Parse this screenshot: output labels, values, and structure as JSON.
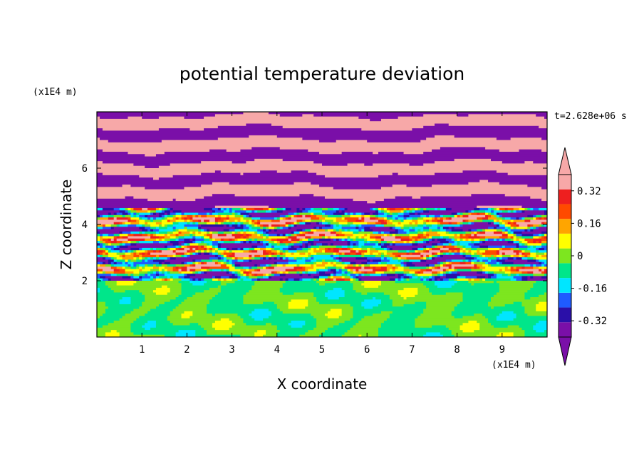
{
  "chart_data": {
    "type": "heatmap",
    "title": "potential temperature deviation",
    "xlabel": "X coordinate",
    "ylabel": "Z coordinate",
    "x_unit": "(x1E4 m)",
    "y_unit": "(x1E4 m)",
    "time_label": "t=2.628e+06 s",
    "xlim": [
      0,
      10
    ],
    "ylim": [
      0,
      8
    ],
    "x_ticks": [
      "1",
      "2",
      "3",
      "4",
      "5",
      "6",
      "7",
      "8",
      "9"
    ],
    "y_ticks": [
      "2",
      "4",
      "6"
    ],
    "colorbar": {
      "tick_labels": [
        "0.32",
        "0.16",
        "0",
        "-0.16",
        "-0.32"
      ],
      "tick_values": [
        0.32,
        0.16,
        0,
        -0.16,
        -0.32
      ],
      "levels": [
        -0.4,
        -0.32,
        -0.24,
        -0.16,
        -0.08,
        0,
        0.08,
        0.16,
        0.24,
        0.32,
        0.4
      ],
      "colors": [
        "#7a0fa8",
        "#2a0fa8",
        "#1f5bff",
        "#00e6ff",
        "#00e68a",
        "#7de61f",
        "#ffff00",
        "#ffa500",
        "#ff4a00",
        "#ee1f1f",
        "#f7a8a8"
      ],
      "under_color": "#7a0fa8",
      "over_color": "#f7a8a8"
    },
    "regions": [
      {
        "z_range": [
          0,
          2
        ],
        "description_values": "near 0 (-0.08 to 0.08)"
      },
      {
        "z_range": [
          2,
          4.5
        ],
        "description_values": "mixed -0.4 to 0.4"
      },
      {
        "z_range": [
          4.5,
          8
        ],
        "description_values": "alternating bands below -0.4 and above 0.4"
      }
    ]
  }
}
